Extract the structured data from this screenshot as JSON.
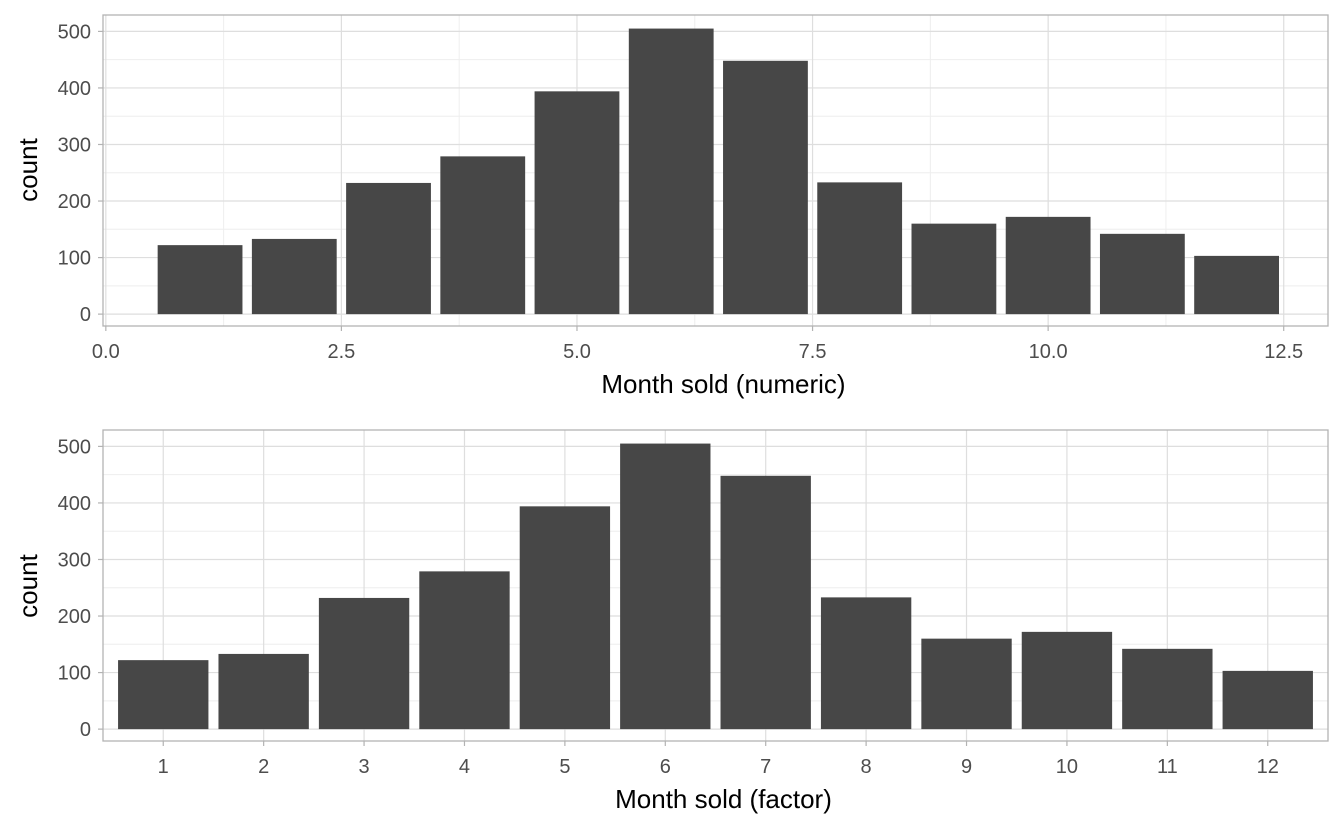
{
  "chart_data": [
    {
      "type": "bar",
      "x": [
        1,
        2,
        3,
        4,
        5,
        6,
        7,
        8,
        9,
        10,
        11,
        12
      ],
      "values": [
        122,
        133,
        232,
        279,
        394,
        505,
        448,
        233,
        160,
        172,
        142,
        103
      ],
      "xlabel": "Month sold (numeric)",
      "ylabel": "count",
      "xlim": [
        -0.03,
        12.97
      ],
      "ylim": [
        -21,
        529
      ],
      "x_ticks": [
        0.0,
        2.5,
        5.0,
        7.5,
        10.0,
        12.5
      ],
      "x_tick_labels": [
        "0.0",
        "2.5",
        "5.0",
        "7.5",
        "10.0",
        "12.5"
      ],
      "y_ticks": [
        0,
        100,
        200,
        300,
        400,
        500
      ],
      "y_tick_labels": [
        "0",
        "100",
        "200",
        "300",
        "400",
        "500"
      ],
      "grid": true,
      "bar_color": "#474747"
    },
    {
      "type": "bar",
      "categories": [
        "1",
        "2",
        "3",
        "4",
        "5",
        "6",
        "7",
        "8",
        "9",
        "10",
        "11",
        "12"
      ],
      "values": [
        122,
        133,
        232,
        279,
        394,
        505,
        448,
        233,
        160,
        172,
        142,
        103
      ],
      "xlabel": "Month sold (factor)",
      "ylabel": "count",
      "ylim": [
        -21,
        529
      ],
      "y_ticks": [
        0,
        100,
        200,
        300,
        400,
        500
      ],
      "y_tick_labels": [
        "0",
        "100",
        "200",
        "300",
        "400",
        "500"
      ],
      "grid": true,
      "bar_color": "#474747"
    }
  ],
  "colors": {
    "background": "#ffffff",
    "panel_border": "#b3b3b3",
    "grid_major": "#dedede",
    "grid_minor": "#eeeeee",
    "tick_text": "#4d4d4d",
    "title_text": "#000000"
  }
}
